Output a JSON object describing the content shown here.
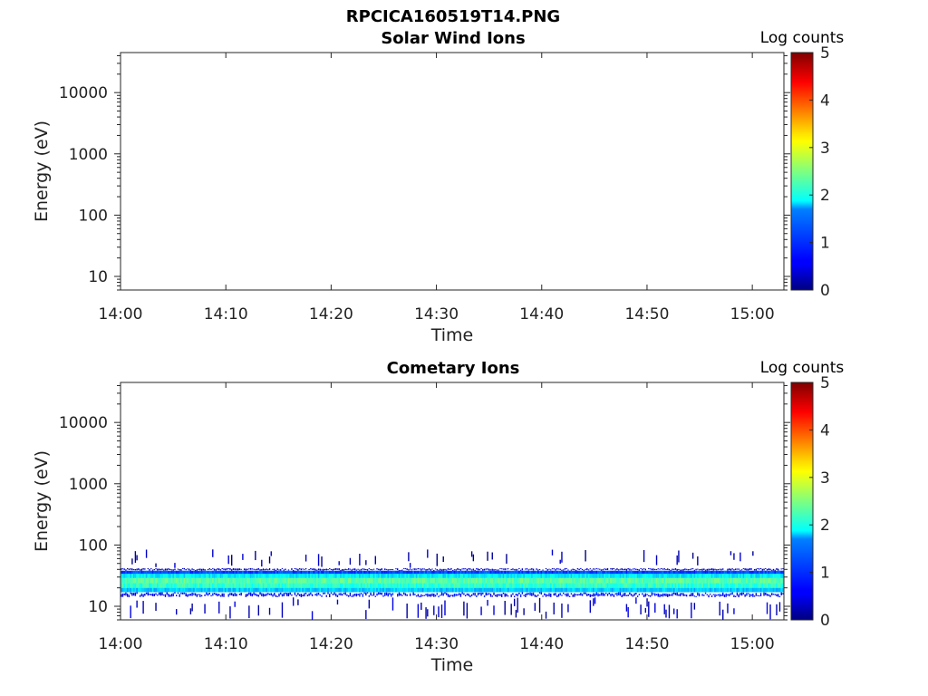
{
  "figure": {
    "title": "RPCICA160519T14.PNG"
  },
  "chart_data": [
    {
      "type": "heatmap",
      "title": "Solar Wind Ions",
      "xlabel": "Time",
      "ylabel": "Energy (eV)",
      "y_scale": "log",
      "ylim": [
        6,
        45000
      ],
      "xlim": [
        "14:00",
        "15:03"
      ],
      "x_ticks": [
        "14:00",
        "14:10",
        "14:20",
        "14:30",
        "14:40",
        "14:50",
        "15:00"
      ],
      "y_ticks": [
        "10",
        "100",
        "1000",
        "10000"
      ],
      "colorbar": {
        "label": "Log counts",
        "range": [
          0,
          5
        ],
        "ticks": [
          "0",
          "1",
          "2",
          "3",
          "4",
          "5"
        ],
        "colormap": "jet"
      },
      "data_description": "empty",
      "bands": []
    },
    {
      "type": "heatmap",
      "title": "Cometary Ions",
      "xlabel": "Time",
      "ylabel": "Energy (eV)",
      "y_scale": "log",
      "ylim": [
        6,
        45000
      ],
      "xlim": [
        "14:00",
        "15:03"
      ],
      "x_ticks": [
        "14:00",
        "14:10",
        "14:20",
        "14:30",
        "14:40",
        "14:50",
        "15:00"
      ],
      "y_ticks": [
        "10",
        "100",
        "1000",
        "10000"
      ],
      "colorbar": {
        "label": "Log counts",
        "range": [
          0,
          5
        ],
        "ticks": [
          "0",
          "1",
          "2",
          "3",
          "4",
          "5"
        ],
        "colormap": "jet"
      },
      "bands": [
        {
          "e_low": 6,
          "e_high": 14,
          "log_counts": 0.3,
          "coverage": 0.2
        },
        {
          "e_low": 14,
          "e_high": 17,
          "log_counts": 0.6,
          "coverage": 0.95
        },
        {
          "e_low": 17,
          "e_high": 20,
          "log_counts": 1.6,
          "coverage": 1.0
        },
        {
          "e_low": 20,
          "e_high": 24,
          "log_counts": 2.1,
          "coverage": 1.0
        },
        {
          "e_low": 24,
          "e_high": 29,
          "log_counts": 2.3,
          "coverage": 1.0
        },
        {
          "e_low": 29,
          "e_high": 34,
          "log_counts": 1.8,
          "coverage": 1.0
        },
        {
          "e_low": 34,
          "e_high": 38,
          "log_counts": 1.0,
          "coverage": 1.0
        },
        {
          "e_low": 38,
          "e_high": 42,
          "log_counts": 0.3,
          "coverage": 0.95
        },
        {
          "e_low": 42,
          "e_high": 85,
          "log_counts": 0.2,
          "coverage": 0.12
        }
      ]
    }
  ]
}
